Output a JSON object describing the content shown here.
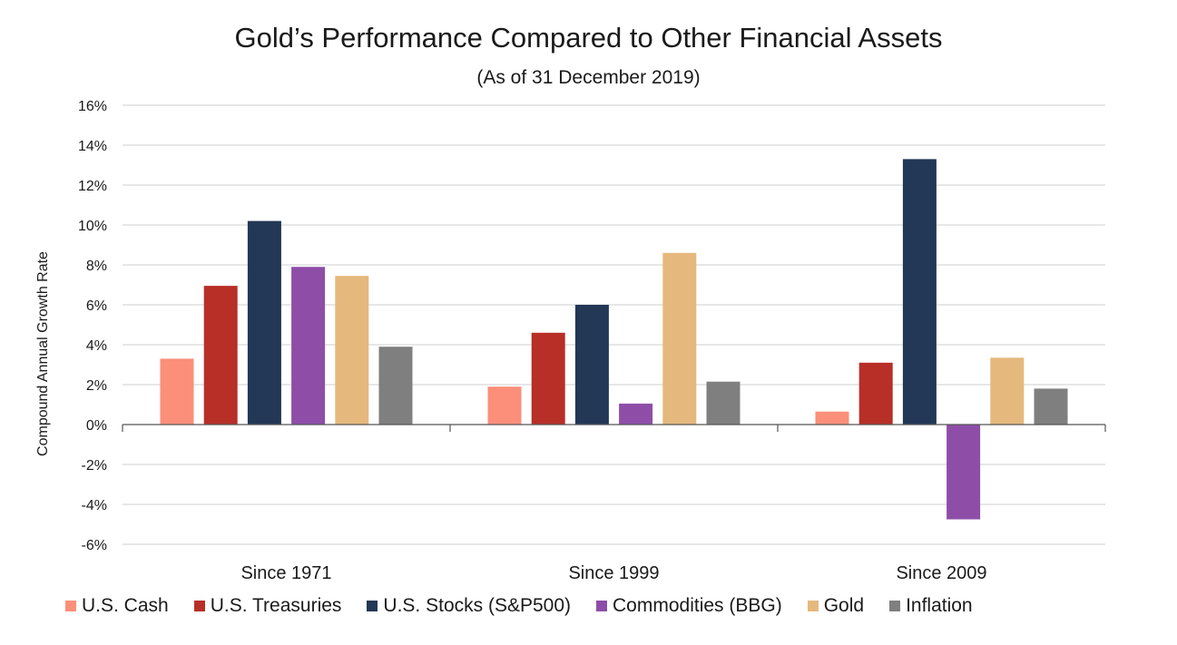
{
  "title": "Gold’s Performance Compared to Other Financial Assets",
  "subtitle": "(As of 31 December 2019)",
  "chart_data": {
    "type": "bar",
    "categories": [
      "Since 1971",
      "Since 1999",
      "Since 2009"
    ],
    "ylabel": "Compound Annual Growth Rate",
    "xlabel": "",
    "ylim": [
      -6,
      16
    ],
    "yticks": [
      16,
      14,
      12,
      10,
      8,
      6,
      4,
      2,
      0,
      -2,
      -4,
      -6
    ],
    "ytick_labels": [
      "16%",
      "14%",
      "12%",
      "10%",
      "8%",
      "6%",
      "4%",
      "2%",
      "0%",
      "-2%",
      "-4%",
      "-6%"
    ],
    "grid": true,
    "legend_position": "bottom",
    "series": [
      {
        "name": "U.S. Cash",
        "color": "#fb8f7a",
        "values": [
          3.3,
          1.9,
          0.65
        ]
      },
      {
        "name": "U.S. Treasuries",
        "color": "#b72f27",
        "values": [
          6.95,
          4.6,
          3.1
        ]
      },
      {
        "name": "U.S. Stocks (S&P500)",
        "color": "#233756",
        "values": [
          10.2,
          6.0,
          13.3
        ]
      },
      {
        "name": "Commodities (BBG)",
        "color": "#8e4ea8",
        "values": [
          7.9,
          1.05,
          -4.75
        ]
      },
      {
        "name": "Gold",
        "color": "#e5b87e",
        "values": [
          7.45,
          8.6,
          3.35
        ]
      },
      {
        "name": "Inflation",
        "color": "#7f7f7f",
        "values": [
          3.9,
          2.15,
          1.8
        ]
      }
    ]
  }
}
